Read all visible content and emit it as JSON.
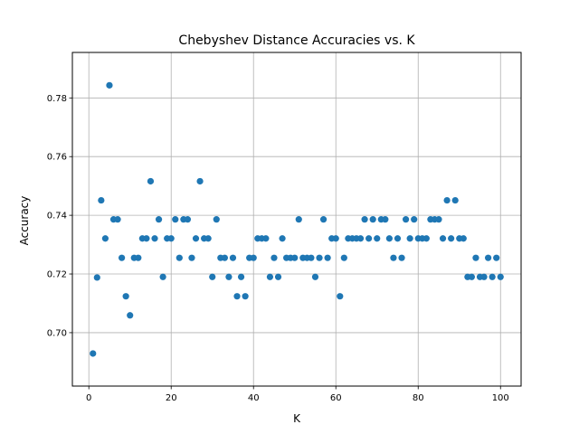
{
  "chart_data": {
    "type": "scatter",
    "title": "Chebyshev Distance Accuracies vs. K",
    "xlabel": "K",
    "ylabel": "Accuracy",
    "xlim": [
      -4.0,
      105.0
    ],
    "ylim": [
      0.6818,
      0.7955
    ],
    "xticks": [
      0,
      20,
      40,
      60,
      80,
      100
    ],
    "xtick_labels": [
      "0",
      "20",
      "40",
      "60",
      "80",
      "100"
    ],
    "yticks": [
      0.7,
      0.72,
      0.74,
      0.76,
      0.78
    ],
    "ytick_labels": [
      "0.70",
      "0.72",
      "0.74",
      "0.76",
      "0.78"
    ],
    "grid": true,
    "marker_color": "#1f77b4",
    "series": [
      {
        "x": [
          1,
          2,
          3,
          4,
          5,
          6,
          7,
          8,
          9,
          10,
          11,
          12,
          13,
          14,
          15,
          16,
          17,
          18,
          19,
          20,
          21,
          22,
          23,
          24,
          25,
          26,
          27,
          28,
          29,
          30,
          31,
          32,
          33,
          34,
          35,
          36,
          37,
          38,
          39,
          40,
          41,
          42,
          43,
          44,
          45,
          46,
          47,
          48,
          49,
          50,
          51,
          52,
          53,
          54,
          55,
          56,
          57,
          58,
          59,
          60,
          61,
          62,
          63,
          64,
          65,
          66,
          67,
          68,
          69,
          70,
          71,
          72,
          73,
          74,
          75,
          76,
          77,
          78,
          79,
          80,
          81,
          82,
          83,
          84,
          85,
          86,
          87,
          88,
          89,
          90,
          91,
          92,
          93,
          94,
          95,
          96,
          97,
          98,
          99,
          100
        ],
        "values": [
          0.6929,
          0.7188,
          0.7451,
          0.7321,
          0.7843,
          0.7386,
          0.7386,
          0.7255,
          0.7124,
          0.7059,
          0.7255,
          0.7255,
          0.7321,
          0.7321,
          0.7516,
          0.7321,
          0.7386,
          0.719,
          0.7321,
          0.7321,
          0.7386,
          0.7255,
          0.7386,
          0.7386,
          0.7255,
          0.7321,
          0.7516,
          0.7321,
          0.7321,
          0.719,
          0.7386,
          0.7255,
          0.7255,
          0.719,
          0.7255,
          0.7124,
          0.719,
          0.7124,
          0.7255,
          0.7255,
          0.7321,
          0.7321,
          0.7321,
          0.719,
          0.7255,
          0.719,
          0.7321,
          0.7255,
          0.7255,
          0.7255,
          0.7386,
          0.7255,
          0.7255,
          0.7255,
          0.719,
          0.7255,
          0.7386,
          0.7255,
          0.7321,
          0.7321,
          0.7124,
          0.7255,
          0.7321,
          0.7321,
          0.7321,
          0.7321,
          0.7386,
          0.7321,
          0.7386,
          0.7321,
          0.7386,
          0.7386,
          0.7321,
          0.7255,
          0.7321,
          0.7255,
          0.7386,
          0.7321,
          0.7386,
          0.7321,
          0.7321,
          0.7321,
          0.7386,
          0.7386,
          0.7386,
          0.7321,
          0.7451,
          0.7321,
          0.7451,
          0.7321,
          0.7321,
          0.719,
          0.719,
          0.7255,
          0.719,
          0.719,
          0.7255,
          0.719,
          0.7255,
          0.719
        ]
      }
    ]
  }
}
